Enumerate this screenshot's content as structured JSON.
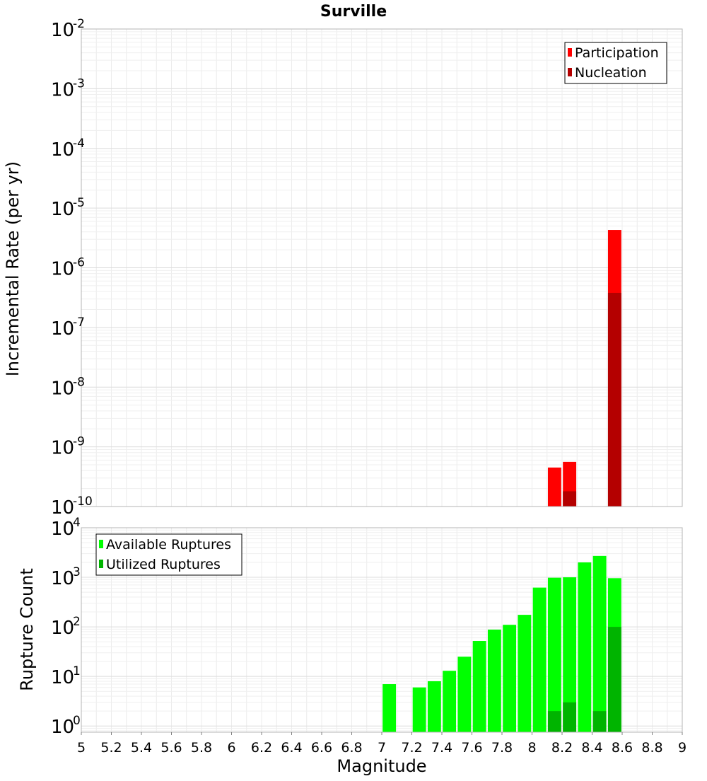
{
  "chart_data": [
    {
      "type": "bar",
      "title": "Surville",
      "xlabel": "",
      "ylabel": "Incremental Rate (per yr)",
      "yscale": "log",
      "ylim": [
        1e-10,
        0.01
      ],
      "xlim": [
        5,
        9
      ],
      "bar_width": 0.1,
      "y_tick_exponents": [
        "-10",
        "-9",
        "-8",
        "-7",
        "-6",
        "-5",
        "-4",
        "-3",
        "-2"
      ],
      "y_tick_base": "10",
      "legend": {
        "position": "top-right",
        "entries": [
          "Participation",
          "Nucleation"
        ]
      },
      "grid": true,
      "series": [
        {
          "name": "Participation",
          "color": "#ff0000",
          "points": [
            {
              "x": 8.15,
              "y": 4.5e-10
            },
            {
              "x": 8.25,
              "y": 5.6e-10
            },
            {
              "x": 8.55,
              "y": 4.3e-06
            }
          ]
        },
        {
          "name": "Nucleation",
          "color": "#b40000",
          "points": [
            {
              "x": 8.25,
              "y": 1.8e-10
            },
            {
              "x": 8.55,
              "y": 3.8e-07
            }
          ]
        }
      ]
    },
    {
      "type": "bar",
      "title": "",
      "xlabel": "Magnitude",
      "ylabel": "Rupture Count",
      "yscale": "log",
      "ylim": [
        0.75,
        10000
      ],
      "xlim": [
        5,
        9
      ],
      "bar_width": 0.1,
      "x_ticks": [
        "5",
        "5.2",
        "5.4",
        "5.6",
        "5.8",
        "6",
        "6.2",
        "6.4",
        "6.6",
        "6.8",
        "7",
        "7.2",
        "7.4",
        "7.6",
        "7.8",
        "8",
        "8.2",
        "8.4",
        "8.6",
        "8.8",
        "9"
      ],
      "y_tick_exponents": [
        "0",
        "1",
        "2",
        "3",
        "4"
      ],
      "y_tick_base": "10",
      "legend": {
        "position": "top-left",
        "entries": [
          "Available Ruptures",
          "Utilized Ruptures"
        ]
      },
      "grid": true,
      "series": [
        {
          "name": "Available Ruptures",
          "color": "#00ff00",
          "points": [
            {
              "x": 7.05,
              "y": 7
            },
            {
              "x": 7.25,
              "y": 6
            },
            {
              "x": 7.35,
              "y": 8
            },
            {
              "x": 7.45,
              "y": 13
            },
            {
              "x": 7.55,
              "y": 25
            },
            {
              "x": 7.65,
              "y": 52
            },
            {
              "x": 7.75,
              "y": 88
            },
            {
              "x": 7.85,
              "y": 110
            },
            {
              "x": 7.95,
              "y": 175
            },
            {
              "x": 8.05,
              "y": 620
            },
            {
              "x": 8.15,
              "y": 980
            },
            {
              "x": 8.25,
              "y": 1000
            },
            {
              "x": 8.35,
              "y": 2000
            },
            {
              "x": 8.45,
              "y": 2700
            },
            {
              "x": 8.55,
              "y": 960
            }
          ]
        },
        {
          "name": "Utilized Ruptures",
          "color": "#00b400",
          "points": [
            {
              "x": 8.15,
              "y": 2
            },
            {
              "x": 8.25,
              "y": 3
            },
            {
              "x": 8.45,
              "y": 2
            },
            {
              "x": 8.55,
              "y": 100
            }
          ]
        }
      ]
    }
  ]
}
